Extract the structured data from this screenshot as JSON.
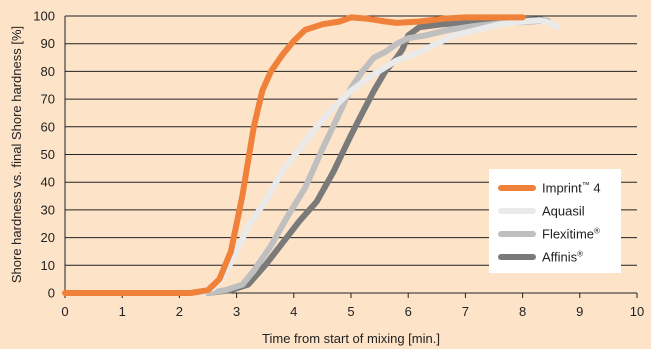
{
  "chart_data": {
    "type": "line",
    "xlabel": "Time from start of mixing [min.]",
    "ylabel": "Shore hardness vs. final Shore hardness [%]",
    "xlim": [
      0,
      10
    ],
    "ylim": [
      0,
      100
    ],
    "x_ticks": [
      0,
      1,
      2,
      3,
      4,
      5,
      6,
      7,
      8,
      9,
      10
    ],
    "y_ticks": [
      0,
      10,
      20,
      30,
      40,
      50,
      60,
      70,
      80,
      90,
      100
    ],
    "grid": "horizontal",
    "legend_position": "bottom-right",
    "colors": {
      "background": "#fde3c8",
      "grid": "#222222",
      "legend_bg": "#ffffff"
    },
    "series": [
      {
        "name": "Imprint",
        "name_sup": "™",
        "name_suffix": " 4",
        "color": "#f0813a",
        "width": 6,
        "points": [
          [
            0,
            0
          ],
          [
            2.2,
            0
          ],
          [
            2.5,
            1
          ],
          [
            2.7,
            5
          ],
          [
            2.9,
            15
          ],
          [
            3.1,
            35
          ],
          [
            3.3,
            60
          ],
          [
            3.45,
            73
          ],
          [
            3.6,
            80
          ],
          [
            3.8,
            86
          ],
          [
            4.0,
            91
          ],
          [
            4.2,
            95
          ],
          [
            4.5,
            97
          ],
          [
            4.8,
            98
          ],
          [
            5.0,
            99.5
          ],
          [
            5.3,
            99
          ],
          [
            5.6,
            98
          ],
          [
            5.8,
            97.5
          ],
          [
            6.2,
            98
          ],
          [
            6.6,
            99
          ],
          [
            7.0,
            99.5
          ],
          [
            7.5,
            99.5
          ],
          [
            8.0,
            99.5
          ]
        ]
      },
      {
        "name": "Aquasil",
        "name_sup": "",
        "name_suffix": "",
        "color": "#eaeaea",
        "width": 6,
        "points": [
          [
            2.4,
            0
          ],
          [
            2.6,
            2
          ],
          [
            2.8,
            7
          ],
          [
            3.0,
            15
          ],
          [
            3.2,
            24
          ],
          [
            3.5,
            33
          ],
          [
            3.8,
            44
          ],
          [
            4.1,
            52
          ],
          [
            4.4,
            60
          ],
          [
            4.7,
            67
          ],
          [
            5.0,
            73
          ],
          [
            5.4,
            79
          ],
          [
            5.8,
            84
          ],
          [
            6.2,
            87
          ],
          [
            6.5,
            90
          ],
          [
            6.8,
            93
          ],
          [
            7.2,
            95
          ],
          [
            7.6,
            97
          ],
          [
            8.0,
            98
          ],
          [
            8.3,
            98.5
          ],
          [
            8.5,
            97.5
          ],
          [
            8.6,
            96
          ]
        ]
      },
      {
        "name": "Flexitime",
        "name_sup": "®",
        "name_suffix": "",
        "color": "#bfbfbf",
        "width": 6,
        "points": [
          [
            2.5,
            0
          ],
          [
            2.8,
            1
          ],
          [
            3.1,
            3
          ],
          [
            3.3,
            8
          ],
          [
            3.6,
            17
          ],
          [
            3.9,
            28
          ],
          [
            4.2,
            38
          ],
          [
            4.5,
            52
          ],
          [
            4.8,
            65
          ],
          [
            5.0,
            74
          ],
          [
            5.2,
            80
          ],
          [
            5.4,
            85
          ],
          [
            5.6,
            87
          ],
          [
            5.8,
            90
          ],
          [
            6.0,
            92
          ],
          [
            6.3,
            93
          ],
          [
            6.7,
            95
          ],
          [
            7.2,
            96.5
          ],
          [
            7.7,
            97.5
          ],
          [
            8.2,
            98
          ],
          [
            8.4,
            98.5
          ]
        ]
      },
      {
        "name": "Affinis",
        "name_sup": "®",
        "name_suffix": "",
        "color": "#7a7a7a",
        "width": 6,
        "points": [
          [
            2.5,
            0
          ],
          [
            2.9,
            1
          ],
          [
            3.2,
            3
          ],
          [
            3.5,
            10
          ],
          [
            3.8,
            18
          ],
          [
            4.1,
            26
          ],
          [
            4.4,
            33
          ],
          [
            4.7,
            44
          ],
          [
            5.0,
            57
          ],
          [
            5.2,
            65
          ],
          [
            5.4,
            73
          ],
          [
            5.6,
            80
          ],
          [
            5.8,
            85
          ],
          [
            5.9,
            88
          ],
          [
            6.0,
            93
          ],
          [
            6.2,
            96
          ],
          [
            6.6,
            97
          ],
          [
            7.0,
            97.5
          ],
          [
            7.5,
            98
          ],
          [
            8.0,
            98.5
          ],
          [
            8.3,
            98.8
          ],
          [
            8.45,
            98
          ]
        ]
      }
    ]
  }
}
